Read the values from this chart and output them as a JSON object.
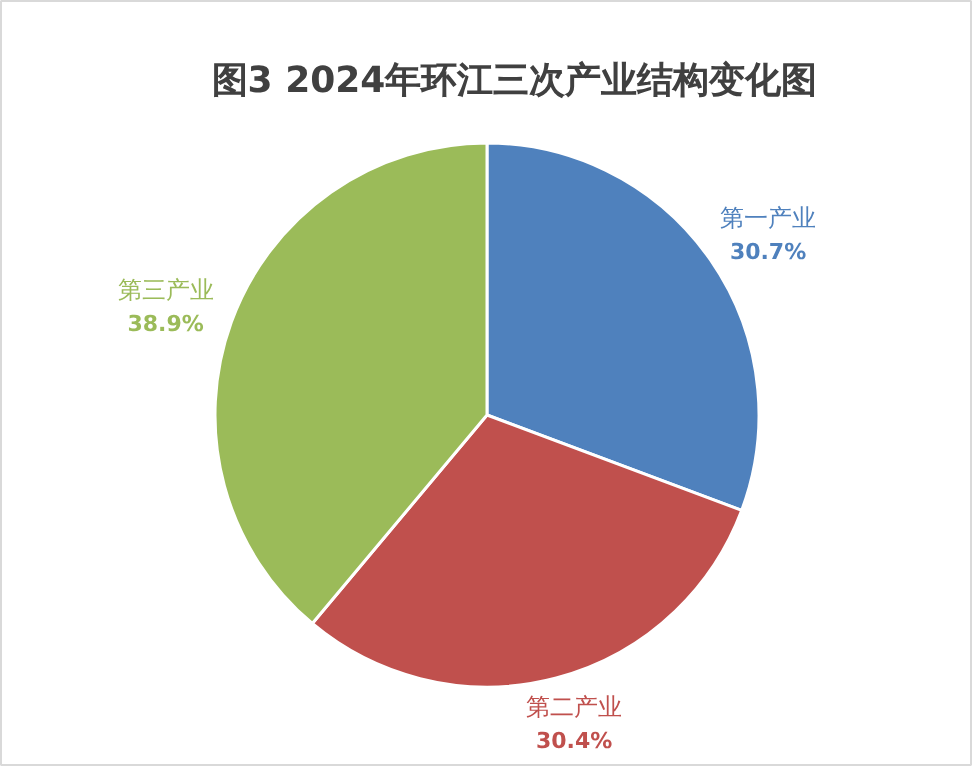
{
  "chart_data": {
    "type": "pie",
    "title": "图3   2024年环江三次产业结构变化图",
    "categories": [
      "第一产业",
      "第二产业",
      "第三产业"
    ],
    "values": [
      30.7,
      30.4,
      38.9
    ],
    "colors": [
      "#4f81bd",
      "#c0504d",
      "#9bbb59"
    ],
    "value_labels": [
      "30.7%",
      "30.4%",
      "38.9%"
    ]
  }
}
